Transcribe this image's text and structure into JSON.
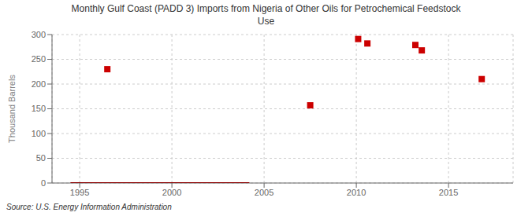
{
  "chart_data": {
    "type": "scatter",
    "title": "Monthly Gulf Coast (PADD 3) Imports from Nigeria of Other Oils for Petrochemical Feedstock\nUse",
    "ylabel": "Thousand Barrels",
    "annotations": [
      "Source: U.S. Energy Information Administration"
    ],
    "xlim": [
      1993.5,
      2018.5
    ],
    "ylim": [
      0,
      300
    ],
    "xticks": [
      1995,
      2000,
      2005,
      2010,
      2015
    ],
    "yticks": [
      0,
      50,
      100,
      150,
      200,
      250,
      300
    ],
    "grid": true,
    "series": [
      {
        "type": "scatter",
        "color": "#cc0000",
        "marker": "square",
        "x": [
          1996.5,
          2007.5,
          2010.1,
          2010.6,
          2013.2,
          2013.55,
          2016.8
        ],
        "values": [
          230,
          157,
          291,
          282,
          279,
          268,
          210
        ]
      },
      {
        "type": "line",
        "color": "#8b0000",
        "x": [
          1994.5,
          2004.2
        ],
        "values": [
          0,
          0
        ]
      }
    ]
  }
}
